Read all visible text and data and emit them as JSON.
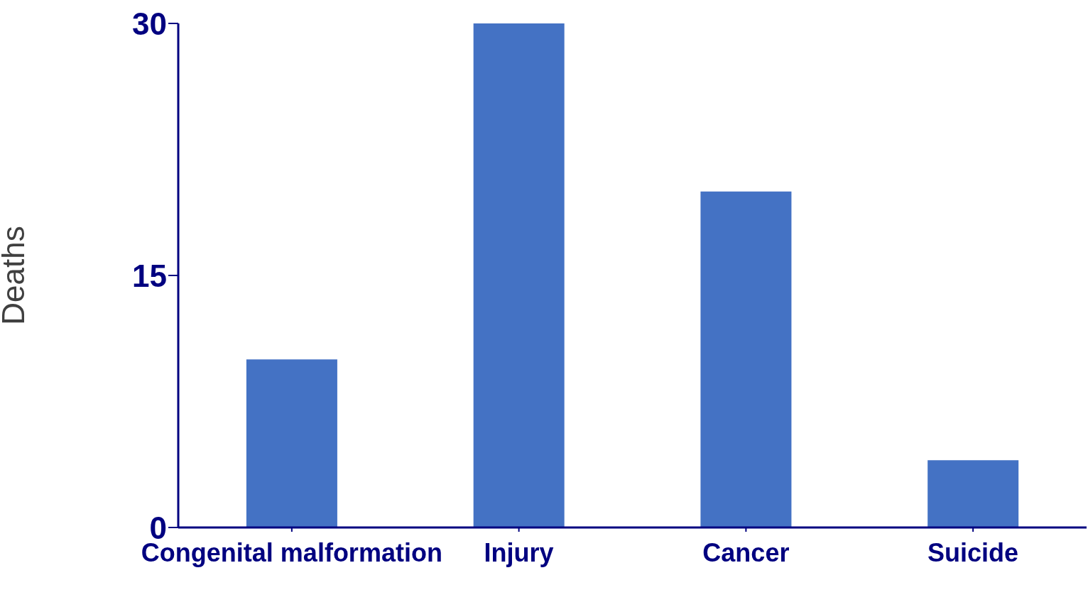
{
  "chart_data": {
    "type": "bar",
    "ylabel": "Deaths",
    "categories": [
      "Congenital malformation",
      "Injury",
      "Cancer",
      "Suicide"
    ],
    "values": [
      10,
      30,
      20,
      4
    ],
    "color": "#4472c4",
    "ylim": [
      0,
      30
    ],
    "yticks": [
      0,
      15,
      30
    ],
    "grid": false,
    "legend": false
  }
}
